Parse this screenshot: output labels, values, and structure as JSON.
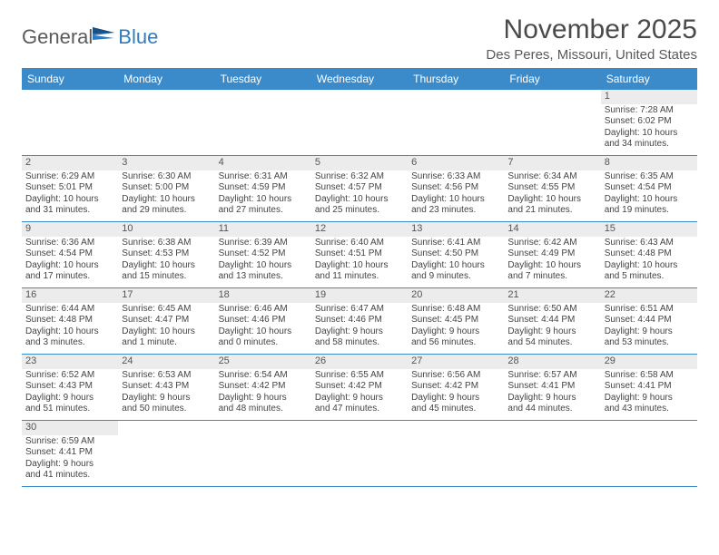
{
  "logo": {
    "general": "General",
    "blue": "Blue"
  },
  "header": {
    "month_title": "November 2025",
    "location": "Des Peres, Missouri, United States"
  },
  "colors": {
    "header_bg": "#3b8bca",
    "header_text": "#ffffff",
    "row_border": "#3b8bca",
    "shaded_bg": "#ececec",
    "logo_gray": "#5b5b5b",
    "logo_blue": "#2f7bbf"
  },
  "day_names": [
    "Sunday",
    "Monday",
    "Tuesday",
    "Wednesday",
    "Thursday",
    "Friday",
    "Saturday"
  ],
  "weeks": [
    [
      {
        "num": "",
        "sunrise": "",
        "sunset": "",
        "daylight1": "",
        "daylight2": "",
        "shaded": false,
        "empty": true
      },
      {
        "num": "",
        "sunrise": "",
        "sunset": "",
        "daylight1": "",
        "daylight2": "",
        "shaded": false,
        "empty": true
      },
      {
        "num": "",
        "sunrise": "",
        "sunset": "",
        "daylight1": "",
        "daylight2": "",
        "shaded": false,
        "empty": true
      },
      {
        "num": "",
        "sunrise": "",
        "sunset": "",
        "daylight1": "",
        "daylight2": "",
        "shaded": false,
        "empty": true
      },
      {
        "num": "",
        "sunrise": "",
        "sunset": "",
        "daylight1": "",
        "daylight2": "",
        "shaded": false,
        "empty": true
      },
      {
        "num": "",
        "sunrise": "",
        "sunset": "",
        "daylight1": "",
        "daylight2": "",
        "shaded": false,
        "empty": true
      },
      {
        "num": "1",
        "sunrise": "Sunrise: 7:28 AM",
        "sunset": "Sunset: 6:02 PM",
        "daylight1": "Daylight: 10 hours",
        "daylight2": "and 34 minutes.",
        "shaded": true,
        "empty": false
      }
    ],
    [
      {
        "num": "2",
        "sunrise": "Sunrise: 6:29 AM",
        "sunset": "Sunset: 5:01 PM",
        "daylight1": "Daylight: 10 hours",
        "daylight2": "and 31 minutes.",
        "shaded": true,
        "empty": false
      },
      {
        "num": "3",
        "sunrise": "Sunrise: 6:30 AM",
        "sunset": "Sunset: 5:00 PM",
        "daylight1": "Daylight: 10 hours",
        "daylight2": "and 29 minutes.",
        "shaded": true,
        "empty": false
      },
      {
        "num": "4",
        "sunrise": "Sunrise: 6:31 AM",
        "sunset": "Sunset: 4:59 PM",
        "daylight1": "Daylight: 10 hours",
        "daylight2": "and 27 minutes.",
        "shaded": true,
        "empty": false
      },
      {
        "num": "5",
        "sunrise": "Sunrise: 6:32 AM",
        "sunset": "Sunset: 4:57 PM",
        "daylight1": "Daylight: 10 hours",
        "daylight2": "and 25 minutes.",
        "shaded": true,
        "empty": false
      },
      {
        "num": "6",
        "sunrise": "Sunrise: 6:33 AM",
        "sunset": "Sunset: 4:56 PM",
        "daylight1": "Daylight: 10 hours",
        "daylight2": "and 23 minutes.",
        "shaded": true,
        "empty": false
      },
      {
        "num": "7",
        "sunrise": "Sunrise: 6:34 AM",
        "sunset": "Sunset: 4:55 PM",
        "daylight1": "Daylight: 10 hours",
        "daylight2": "and 21 minutes.",
        "shaded": true,
        "empty": false
      },
      {
        "num": "8",
        "sunrise": "Sunrise: 6:35 AM",
        "sunset": "Sunset: 4:54 PM",
        "daylight1": "Daylight: 10 hours",
        "daylight2": "and 19 minutes.",
        "shaded": true,
        "empty": false
      }
    ],
    [
      {
        "num": "9",
        "sunrise": "Sunrise: 6:36 AM",
        "sunset": "Sunset: 4:54 PM",
        "daylight1": "Daylight: 10 hours",
        "daylight2": "and 17 minutes.",
        "shaded": true,
        "empty": false
      },
      {
        "num": "10",
        "sunrise": "Sunrise: 6:38 AM",
        "sunset": "Sunset: 4:53 PM",
        "daylight1": "Daylight: 10 hours",
        "daylight2": "and 15 minutes.",
        "shaded": true,
        "empty": false
      },
      {
        "num": "11",
        "sunrise": "Sunrise: 6:39 AM",
        "sunset": "Sunset: 4:52 PM",
        "daylight1": "Daylight: 10 hours",
        "daylight2": "and 13 minutes.",
        "shaded": true,
        "empty": false
      },
      {
        "num": "12",
        "sunrise": "Sunrise: 6:40 AM",
        "sunset": "Sunset: 4:51 PM",
        "daylight1": "Daylight: 10 hours",
        "daylight2": "and 11 minutes.",
        "shaded": true,
        "empty": false
      },
      {
        "num": "13",
        "sunrise": "Sunrise: 6:41 AM",
        "sunset": "Sunset: 4:50 PM",
        "daylight1": "Daylight: 10 hours",
        "daylight2": "and 9 minutes.",
        "shaded": true,
        "empty": false
      },
      {
        "num": "14",
        "sunrise": "Sunrise: 6:42 AM",
        "sunset": "Sunset: 4:49 PM",
        "daylight1": "Daylight: 10 hours",
        "daylight2": "and 7 minutes.",
        "shaded": true,
        "empty": false
      },
      {
        "num": "15",
        "sunrise": "Sunrise: 6:43 AM",
        "sunset": "Sunset: 4:48 PM",
        "daylight1": "Daylight: 10 hours",
        "daylight2": "and 5 minutes.",
        "shaded": true,
        "empty": false
      }
    ],
    [
      {
        "num": "16",
        "sunrise": "Sunrise: 6:44 AM",
        "sunset": "Sunset: 4:48 PM",
        "daylight1": "Daylight: 10 hours",
        "daylight2": "and 3 minutes.",
        "shaded": true,
        "empty": false
      },
      {
        "num": "17",
        "sunrise": "Sunrise: 6:45 AM",
        "sunset": "Sunset: 4:47 PM",
        "daylight1": "Daylight: 10 hours",
        "daylight2": "and 1 minute.",
        "shaded": true,
        "empty": false
      },
      {
        "num": "18",
        "sunrise": "Sunrise: 6:46 AM",
        "sunset": "Sunset: 4:46 PM",
        "daylight1": "Daylight: 10 hours",
        "daylight2": "and 0 minutes.",
        "shaded": true,
        "empty": false
      },
      {
        "num": "19",
        "sunrise": "Sunrise: 6:47 AM",
        "sunset": "Sunset: 4:46 PM",
        "daylight1": "Daylight: 9 hours",
        "daylight2": "and 58 minutes.",
        "shaded": true,
        "empty": false
      },
      {
        "num": "20",
        "sunrise": "Sunrise: 6:48 AM",
        "sunset": "Sunset: 4:45 PM",
        "daylight1": "Daylight: 9 hours",
        "daylight2": "and 56 minutes.",
        "shaded": true,
        "empty": false
      },
      {
        "num": "21",
        "sunrise": "Sunrise: 6:50 AM",
        "sunset": "Sunset: 4:44 PM",
        "daylight1": "Daylight: 9 hours",
        "daylight2": "and 54 minutes.",
        "shaded": true,
        "empty": false
      },
      {
        "num": "22",
        "sunrise": "Sunrise: 6:51 AM",
        "sunset": "Sunset: 4:44 PM",
        "daylight1": "Daylight: 9 hours",
        "daylight2": "and 53 minutes.",
        "shaded": true,
        "empty": false
      }
    ],
    [
      {
        "num": "23",
        "sunrise": "Sunrise: 6:52 AM",
        "sunset": "Sunset: 4:43 PM",
        "daylight1": "Daylight: 9 hours",
        "daylight2": "and 51 minutes.",
        "shaded": true,
        "empty": false
      },
      {
        "num": "24",
        "sunrise": "Sunrise: 6:53 AM",
        "sunset": "Sunset: 4:43 PM",
        "daylight1": "Daylight: 9 hours",
        "daylight2": "and 50 minutes.",
        "shaded": true,
        "empty": false
      },
      {
        "num": "25",
        "sunrise": "Sunrise: 6:54 AM",
        "sunset": "Sunset: 4:42 PM",
        "daylight1": "Daylight: 9 hours",
        "daylight2": "and 48 minutes.",
        "shaded": true,
        "empty": false
      },
      {
        "num": "26",
        "sunrise": "Sunrise: 6:55 AM",
        "sunset": "Sunset: 4:42 PM",
        "daylight1": "Daylight: 9 hours",
        "daylight2": "and 47 minutes.",
        "shaded": true,
        "empty": false
      },
      {
        "num": "27",
        "sunrise": "Sunrise: 6:56 AM",
        "sunset": "Sunset: 4:42 PM",
        "daylight1": "Daylight: 9 hours",
        "daylight2": "and 45 minutes.",
        "shaded": true,
        "empty": false
      },
      {
        "num": "28",
        "sunrise": "Sunrise: 6:57 AM",
        "sunset": "Sunset: 4:41 PM",
        "daylight1": "Daylight: 9 hours",
        "daylight2": "and 44 minutes.",
        "shaded": true,
        "empty": false
      },
      {
        "num": "29",
        "sunrise": "Sunrise: 6:58 AM",
        "sunset": "Sunset: 4:41 PM",
        "daylight1": "Daylight: 9 hours",
        "daylight2": "and 43 minutes.",
        "shaded": true,
        "empty": false
      }
    ],
    [
      {
        "num": "30",
        "sunrise": "Sunrise: 6:59 AM",
        "sunset": "Sunset: 4:41 PM",
        "daylight1": "Daylight: 9 hours",
        "daylight2": "and 41 minutes.",
        "shaded": true,
        "empty": false
      },
      {
        "num": "",
        "sunrise": "",
        "sunset": "",
        "daylight1": "",
        "daylight2": "",
        "shaded": false,
        "empty": true
      },
      {
        "num": "",
        "sunrise": "",
        "sunset": "",
        "daylight1": "",
        "daylight2": "",
        "shaded": false,
        "empty": true
      },
      {
        "num": "",
        "sunrise": "",
        "sunset": "",
        "daylight1": "",
        "daylight2": "",
        "shaded": false,
        "empty": true
      },
      {
        "num": "",
        "sunrise": "",
        "sunset": "",
        "daylight1": "",
        "daylight2": "",
        "shaded": false,
        "empty": true
      },
      {
        "num": "",
        "sunrise": "",
        "sunset": "",
        "daylight1": "",
        "daylight2": "",
        "shaded": false,
        "empty": true
      },
      {
        "num": "",
        "sunrise": "",
        "sunset": "",
        "daylight1": "",
        "daylight2": "",
        "shaded": false,
        "empty": true
      }
    ]
  ]
}
